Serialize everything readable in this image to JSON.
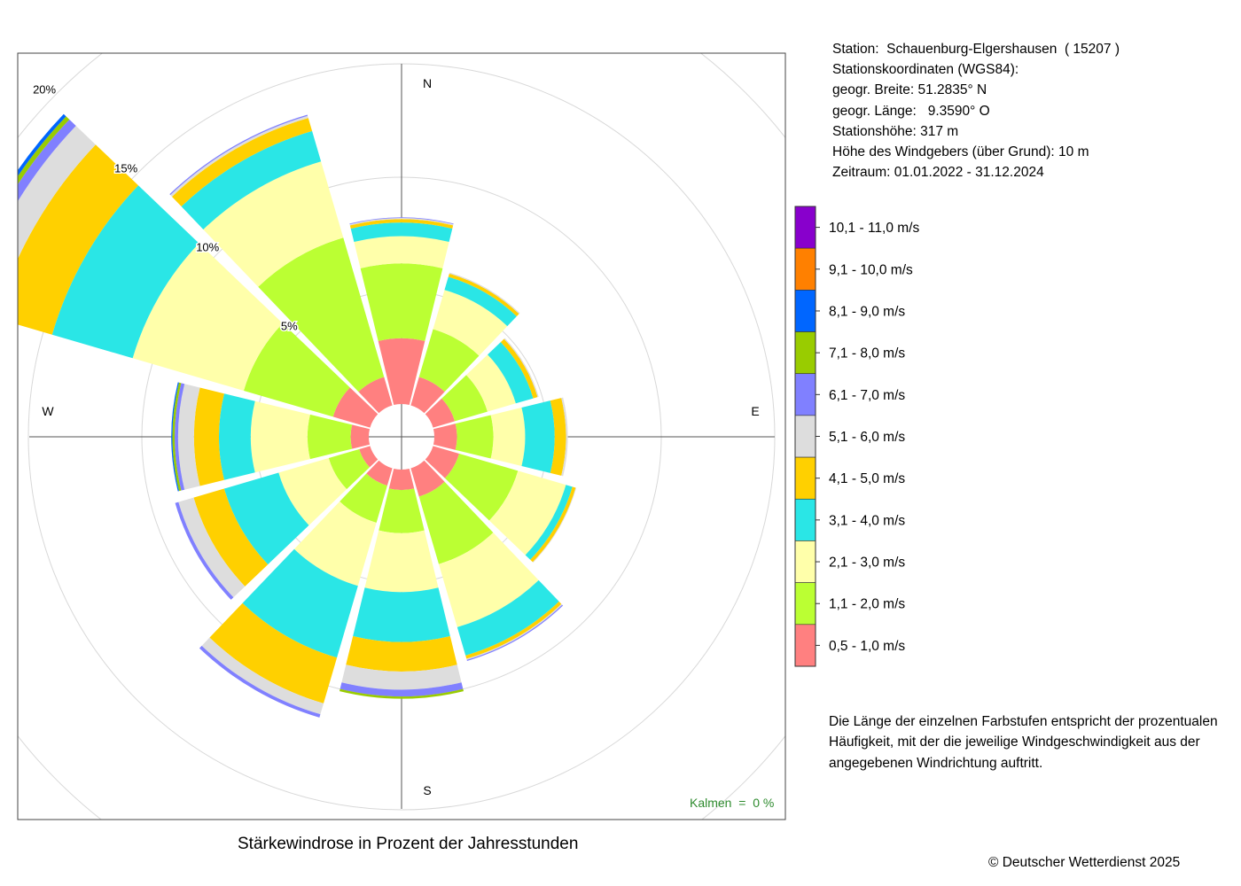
{
  "station": {
    "line1": "Station:  Schauenburg-Elgershausen  ( 15207 )",
    "line2": "Stationskoordinaten (WGS84):",
    "line3": "geogr. Breite: 51.2835° N",
    "line4": "geogr. Länge:   9.3590° O",
    "line5": "Stationshöhe: 317 m",
    "line6": "Höhe des Windgebers (über Grund): 10 m",
    "line7": "Zeitraum: 01.01.2022 - 31.12.2024"
  },
  "note": {
    "line1": "Die Länge der einzelnen Farbstufen entspricht der prozentualen",
    "line2": "Häufigkeit, mit der die jeweilige Windgeschwindigkeit aus der",
    "line3": "angegebenen Windrichtung auftritt."
  },
  "caption": "Stärkewindrose in Prozent der Jahresstunden",
  "copyright": "© Deutscher Wetterdienst  2025",
  "calms": "Kalmen  =  0 %",
  "chart_data": {
    "type": "wind-rose",
    "title": "Stärkewindrose in Prozent der Jahresstunden",
    "radial_unit": "%",
    "radial_ticks": [
      5,
      10,
      15,
      20
    ],
    "radial_tick_labels": [
      "5%",
      "10%",
      "15%",
      "20%"
    ],
    "compass_labels": [
      "N",
      "E",
      "S",
      "W"
    ],
    "sector_width_deg": 30,
    "speed_classes": [
      "0,5 - 1,0 m/s",
      "1,1 - 2,0 m/s",
      "2,1 - 3,0 m/s",
      "3,1 - 4,0 m/s",
      "4,1 - 5,0 m/s",
      "5,1 - 6,0 m/s",
      "6,1 - 7,0 m/s",
      "7,1 - 8,0 m/s",
      "8,1 - 9,0 m/s",
      "9,1 - 10,0 m/s",
      "10,1 - 11,0 m/s"
    ],
    "colors": [
      "#FF8080",
      "#BBFF33",
      "#FFFFAA",
      "#2AE6E6",
      "#FFD000",
      "#DDDDDD",
      "#8080FF",
      "#99CC00",
      "#0066FF",
      "#FF8000",
      "#8800CC"
    ],
    "sectors": [
      {
        "direction": 0,
        "values": [
          2.9,
          3.3,
          1.2,
          0.6,
          0.15,
          0.05,
          0.03,
          0,
          0,
          0,
          0
        ]
      },
      {
        "direction": 30,
        "values": [
          1.3,
          2.2,
          1.8,
          0.6,
          0.15,
          0.05,
          0,
          0,
          0,
          0,
          0
        ]
      },
      {
        "direction": 60,
        "values": [
          1.0,
          1.5,
          1.3,
          0.8,
          0.2,
          0.05,
          0,
          0,
          0,
          0,
          0
        ]
      },
      {
        "direction": 90,
        "values": [
          1.0,
          1.6,
          1.4,
          1.3,
          0.5,
          0.08,
          0,
          0,
          0,
          0,
          0
        ]
      },
      {
        "direction": 120,
        "values": [
          1.2,
          2.7,
          2.2,
          0.3,
          0.15,
          0.03,
          0,
          0,
          0,
          0,
          0
        ]
      },
      {
        "direction": 150,
        "values": [
          1.3,
          3.1,
          2.9,
          1.3,
          0.15,
          0.05,
          0.05,
          0,
          0,
          0,
          0
        ]
      },
      {
        "direction": 180,
        "values": [
          0.9,
          1.9,
          2.6,
          2.2,
          1.3,
          0.8,
          0.3,
          0.1,
          0,
          0,
          0
        ]
      },
      {
        "direction": 210,
        "values": [
          0.8,
          1.7,
          2.9,
          3.3,
          2.1,
          0.5,
          0.15,
          0,
          0,
          0,
          0
        ]
      },
      {
        "direction": 240,
        "values": [
          0.5,
          1.4,
          2.3,
          2.5,
          1.4,
          0.7,
          0.15,
          0,
          0,
          0,
          0
        ]
      },
      {
        "direction": 270,
        "values": [
          0.8,
          1.9,
          2.5,
          1.4,
          1.1,
          0.7,
          0.15,
          0.1,
          0.05,
          0,
          0
        ]
      },
      {
        "direction": 300,
        "values": [
          1.7,
          4.1,
          5.1,
          3.7,
          2.6,
          1.2,
          0.4,
          0.2,
          0.15,
          0,
          0
        ]
      },
      {
        "direction": 330,
        "values": [
          1.3,
          6.4,
          3.5,
          1.4,
          0.6,
          0.1,
          0.05,
          0,
          0,
          0,
          0
        ]
      }
    ]
  }
}
